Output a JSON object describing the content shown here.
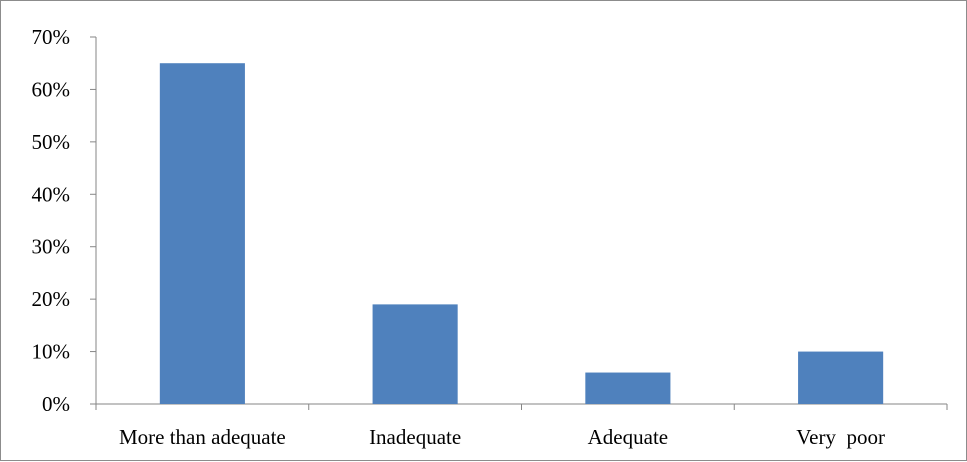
{
  "chart_data": {
    "type": "bar",
    "categories": [
      "More than adequate",
      "Inadequate",
      "Adequate",
      "Very  poor"
    ],
    "values": [
      65,
      19,
      6,
      10
    ],
    "unit": "%",
    "ylim": [
      0,
      70
    ],
    "y_ticks": [
      0,
      10,
      20,
      30,
      40,
      50,
      60,
      70
    ],
    "y_tick_labels": [
      "0%",
      "10%",
      "20%",
      "30%",
      "40%",
      "50%",
      "60%",
      "70%"
    ],
    "title": "",
    "xlabel": "",
    "ylabel": "",
    "grid": false,
    "legend": "none",
    "colors": {
      "bar": "#4f81bd",
      "axis": "#868686"
    }
  }
}
